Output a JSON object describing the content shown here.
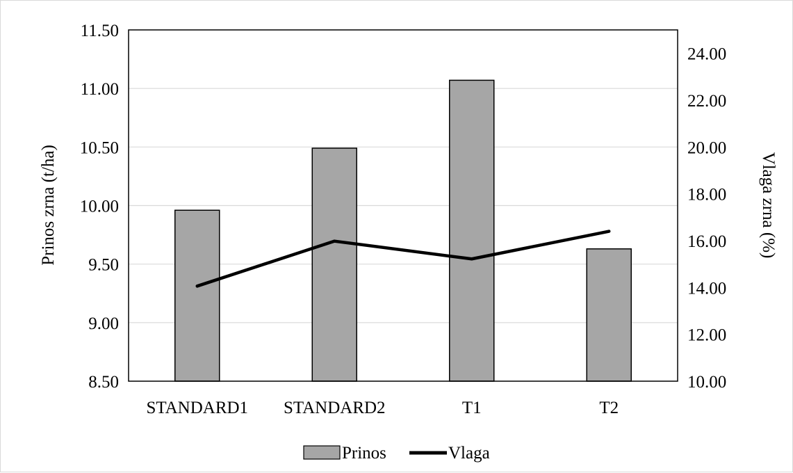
{
  "chart_data": {
    "type": "bar",
    "categories": [
      "STANDARD1",
      "STANDARD2",
      "T1",
      "T2"
    ],
    "series": [
      {
        "name": "Prinos",
        "type": "bar",
        "axis": "left",
        "values": [
          9.96,
          10.49,
          11.07,
          9.63
        ],
        "color": "#a6a6a6"
      },
      {
        "name": "Vlaga",
        "type": "line",
        "axis": "right",
        "values": [
          14.06,
          15.98,
          15.22,
          16.4
        ],
        "color": "#000000"
      }
    ],
    "ylabel": "Prinos zrna (t/ha)",
    "y2label": "Vlaga zrna (%)",
    "ylim": [
      8.5,
      11.5
    ],
    "y2lim": [
      10,
      25
    ],
    "yticks": [
      "8.50",
      "9.00",
      "9.50",
      "10.00",
      "10.50",
      "11.00",
      "11.50"
    ],
    "y2ticks": [
      "10.00",
      "12.00",
      "14.00",
      "16.00",
      "18.00",
      "20.00",
      "22.00",
      "24.00"
    ],
    "grid": true,
    "legend_position": "bottom-center"
  }
}
